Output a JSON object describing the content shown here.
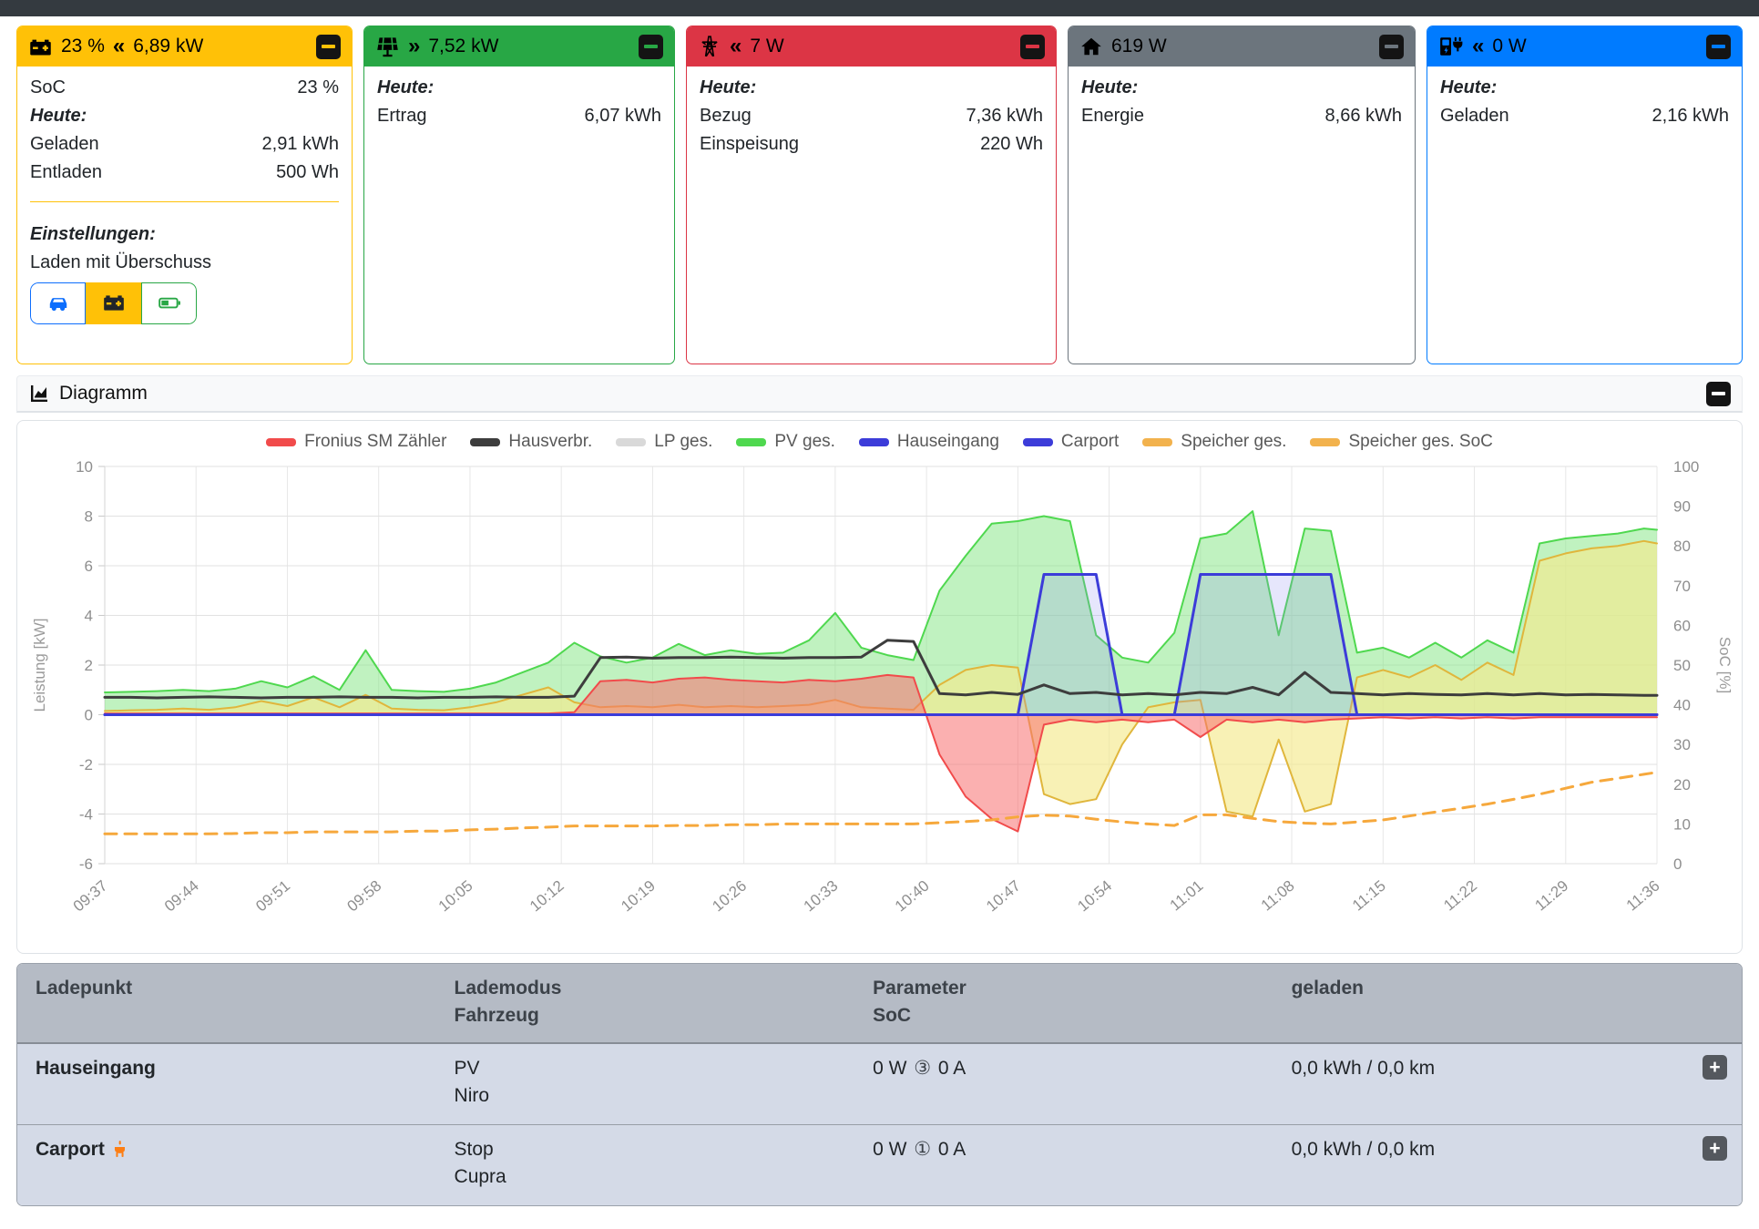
{
  "cards": [
    {
      "name": "storage",
      "accent": "#ffc107",
      "header": {
        "icon": "car-battery-icon",
        "soc": "23 %",
        "chevron": "«",
        "power": "6,89 kW"
      },
      "body": {
        "soc_label": "SoC",
        "soc_value": "23 %",
        "heute_label": "Heute:",
        "rows": [
          {
            "label": "Geladen",
            "value": "2,91 kWh"
          },
          {
            "label": "Entladen",
            "value": "500 Wh"
          }
        ],
        "einstellungen_label": "Einstellungen:",
        "mode_label": "Laden mit Überschuss"
      }
    },
    {
      "name": "pv",
      "accent": "#28a745",
      "header": {
        "icon": "solar-panel-icon",
        "chevron": "»",
        "power": "7,52 kW"
      },
      "body": {
        "heute_label": "Heute:",
        "rows": [
          {
            "label": "Ertrag",
            "value": "6,07 kWh"
          }
        ]
      }
    },
    {
      "name": "grid",
      "accent": "#dc3545",
      "header": {
        "icon": "transmission-tower-icon",
        "chevron": "«",
        "power": "7 W"
      },
      "body": {
        "heute_label": "Heute:",
        "rows": [
          {
            "label": "Bezug",
            "value": "7,36 kWh"
          },
          {
            "label": "Einspeisung",
            "value": "220 Wh"
          }
        ]
      }
    },
    {
      "name": "house",
      "accent": "#6c757d",
      "header": {
        "icon": "house-icon",
        "power": "619 W"
      },
      "body": {
        "heute_label": "Heute:",
        "rows": [
          {
            "label": "Energie",
            "value": "8,66 kWh"
          }
        ]
      }
    },
    {
      "name": "chargepoints",
      "accent": "#007bff",
      "header": {
        "icon": "charging-station-icon",
        "chevron": "«",
        "power": "0 W"
      },
      "body": {
        "heute_label": "Heute:",
        "rows": [
          {
            "label": "Geladen",
            "value": "2,16 kWh"
          }
        ]
      }
    }
  ],
  "diagram": {
    "title": "Diagramm"
  },
  "chart_data": {
    "type": "line",
    "y_left_label": "Leistung [kW]",
    "y_right_label": "SoC [%]",
    "y_left_range": [
      -6,
      10
    ],
    "y_right_range": [
      0,
      100
    ],
    "y_left_ticks": [
      10,
      8,
      6,
      4,
      2,
      0,
      -2,
      -4,
      -6
    ],
    "y_right_ticks": [
      100,
      90,
      80,
      70,
      60,
      50,
      40,
      30,
      20,
      10,
      0
    ],
    "x_tick_minutes": [
      0,
      7,
      14,
      21,
      28,
      35,
      42,
      49,
      56,
      63,
      70,
      77,
      84,
      91,
      98,
      105,
      112,
      119
    ],
    "x_tick_labels": [
      "09:37",
      "09:44",
      "09:51",
      "09:58",
      "10:05",
      "10:12",
      "10:19",
      "10:26",
      "10:33",
      "10:40",
      "10:47",
      "10:54",
      "11:01",
      "11:08",
      "11:15",
      "11:22",
      "11:29",
      "11:36"
    ],
    "x_minutes": [
      0,
      2,
      4,
      6,
      8,
      10,
      12,
      14,
      16,
      18,
      20,
      22,
      24,
      26,
      28,
      30,
      32,
      34,
      36,
      38,
      40,
      42,
      44,
      46,
      48,
      50,
      52,
      54,
      56,
      58,
      60,
      62,
      64,
      66,
      68,
      70,
      72,
      74,
      76,
      78,
      80,
      82,
      84,
      86,
      88,
      90,
      92,
      94,
      96,
      98,
      100,
      102,
      104,
      106,
      108,
      110,
      112,
      114,
      116,
      118,
      119
    ],
    "series": [
      {
        "name": "PV ges.",
        "axis": "power",
        "type": "area",
        "color": "#4fd84f",
        "fill": "rgba(130,230,130,0.50)",
        "width": 2,
        "values": [
          0.9,
          0.92,
          0.95,
          1.0,
          0.95,
          1.05,
          1.35,
          1.1,
          1.55,
          1.0,
          2.6,
          1.0,
          0.95,
          0.92,
          1.05,
          1.3,
          1.7,
          2.1,
          2.9,
          2.35,
          2.1,
          2.3,
          2.85,
          2.4,
          2.6,
          2.45,
          2.5,
          3.0,
          4.1,
          2.7,
          2.4,
          2.2,
          5.0,
          6.4,
          7.7,
          7.8,
          8.0,
          7.8,
          3.2,
          2.3,
          2.1,
          3.3,
          7.1,
          7.3,
          8.2,
          3.2,
          7.5,
          7.4,
          2.5,
          2.7,
          2.3,
          2.9,
          2.3,
          3.0,
          2.5,
          6.9,
          7.1,
          7.2,
          7.3,
          7.5,
          7.45
        ]
      },
      {
        "name": "Speicher ges.",
        "axis": "power",
        "type": "area",
        "color": "#e0b63c",
        "fill": "rgba(244,233,141,0.65)",
        "width": 2,
        "values": [
          0.15,
          0.18,
          0.2,
          0.25,
          0.2,
          0.3,
          0.55,
          0.35,
          0.7,
          0.3,
          0.8,
          0.25,
          0.2,
          0.18,
          0.3,
          0.5,
          0.8,
          1.1,
          0.5,
          0.3,
          0.35,
          0.3,
          0.4,
          0.3,
          0.35,
          0.3,
          0.35,
          0.4,
          0.6,
          0.3,
          0.25,
          0.2,
          1.2,
          1.8,
          2.0,
          1.9,
          -3.2,
          -3.6,
          -3.4,
          -1.2,
          0.3,
          0.5,
          0.6,
          -3.9,
          -4.1,
          -1.0,
          -3.9,
          -3.6,
          1.5,
          1.8,
          1.5,
          2.0,
          1.4,
          2.1,
          1.6,
          6.2,
          6.5,
          6.7,
          6.8,
          7.0,
          6.9
        ]
      },
      {
        "name": "Fronius SM Zähler",
        "axis": "power",
        "type": "area",
        "color": "#f14b4b",
        "fill": "rgba(247,112,112,0.55)",
        "width": 2,
        "values": [
          0.05,
          0.05,
          0.05,
          0.05,
          0.05,
          0.05,
          0.05,
          0.05,
          0.05,
          0.05,
          0.05,
          0.05,
          0.05,
          0.05,
          0.05,
          0.05,
          0.05,
          0.05,
          0.1,
          1.35,
          1.4,
          1.3,
          1.45,
          1.5,
          1.4,
          1.35,
          1.3,
          1.4,
          1.35,
          1.45,
          1.6,
          1.5,
          -1.6,
          -3.3,
          -4.2,
          -4.7,
          -0.4,
          -0.2,
          -0.3,
          -0.2,
          -0.3,
          -0.2,
          -0.9,
          -0.2,
          -0.3,
          -0.2,
          -0.3,
          -0.2,
          -0.15,
          -0.1,
          -0.15,
          -0.1,
          -0.15,
          -0.1,
          -0.15,
          -0.1,
          -0.1,
          -0.1,
          -0.1,
          -0.1,
          -0.1
        ]
      },
      {
        "name": "LP ges.",
        "axis": "power",
        "type": "line",
        "color": "#d9d9d9",
        "width": 2,
        "values": [
          0,
          0,
          0,
          0,
          0,
          0,
          0,
          0,
          0,
          0,
          0,
          0,
          0,
          0,
          0,
          0,
          0,
          0,
          0,
          0,
          0,
          0,
          0,
          0,
          0,
          0,
          0,
          0,
          0,
          0,
          0,
          0,
          0,
          0,
          0,
          0,
          5.65,
          5.65,
          5.65,
          0,
          0,
          0,
          5.65,
          5.65,
          5.65,
          5.65,
          5.65,
          5.65,
          0,
          0,
          0,
          0,
          0,
          0,
          0,
          0,
          0,
          0,
          0,
          0,
          0
        ]
      },
      {
        "name": "Hauseingang",
        "axis": "power",
        "type": "area",
        "color": "#3c3cd9",
        "fill": "rgba(140,140,240,0.22)",
        "width": 3,
        "values": [
          0,
          0,
          0,
          0,
          0,
          0,
          0,
          0,
          0,
          0,
          0,
          0,
          0,
          0,
          0,
          0,
          0,
          0,
          0,
          0,
          0,
          0,
          0,
          0,
          0,
          0,
          0,
          0,
          0,
          0,
          0,
          0,
          0,
          0,
          0,
          0,
          5.65,
          5.65,
          5.65,
          0,
          0,
          0,
          5.65,
          5.65,
          5.65,
          5.65,
          5.65,
          5.65,
          0,
          0,
          0,
          0,
          0,
          0,
          0,
          0,
          0,
          0,
          0,
          0,
          0
        ]
      },
      {
        "name": "Carport",
        "axis": "power",
        "type": "line",
        "color": "#3c3cd9",
        "width": 3,
        "values": [
          0,
          0,
          0,
          0,
          0,
          0,
          0,
          0,
          0,
          0,
          0,
          0,
          0,
          0,
          0,
          0,
          0,
          0,
          0,
          0,
          0,
          0,
          0,
          0,
          0,
          0,
          0,
          0,
          0,
          0,
          0,
          0,
          0,
          0,
          0,
          0,
          0,
          0,
          0,
          0,
          0,
          0,
          0,
          0,
          0,
          0,
          0,
          0,
          0,
          0,
          0,
          0,
          0,
          0,
          0,
          0,
          0,
          0,
          0,
          0,
          0
        ]
      },
      {
        "name": "Hausverbr.",
        "axis": "power",
        "type": "line",
        "color": "#3d3d3d",
        "width": 3,
        "values": [
          0.7,
          0.7,
          0.68,
          0.7,
          0.72,
          0.7,
          0.68,
          0.7,
          0.7,
          0.72,
          0.7,
          0.7,
          0.68,
          0.7,
          0.7,
          0.72,
          0.7,
          0.7,
          0.75,
          2.3,
          2.32,
          2.28,
          2.3,
          2.3,
          2.32,
          2.3,
          2.28,
          2.3,
          2.3,
          2.32,
          3.0,
          2.95,
          0.85,
          0.8,
          0.9,
          0.82,
          1.2,
          0.85,
          0.9,
          0.8,
          0.85,
          0.8,
          0.9,
          0.85,
          1.1,
          0.8,
          1.7,
          0.9,
          0.85,
          0.8,
          0.85,
          0.82,
          0.8,
          0.85,
          0.8,
          0.85,
          0.8,
          0.82,
          0.8,
          0.78,
          0.78
        ]
      },
      {
        "name": "Speicher ges. SoC",
        "axis": "soc",
        "type": "line",
        "color": "#f6a83c",
        "width": 3,
        "dash": "13 9",
        "values": [
          7.5,
          7.5,
          7.5,
          7.5,
          7.5,
          7.6,
          7.8,
          7.8,
          8.0,
          8.0,
          8.0,
          8.0,
          8.2,
          8.2,
          8.5,
          8.7,
          9.0,
          9.2,
          9.5,
          9.5,
          9.5,
          9.5,
          9.6,
          9.6,
          9.8,
          9.8,
          10.0,
          10.0,
          10.0,
          10.0,
          10.0,
          10.0,
          10.3,
          10.6,
          11.0,
          11.8,
          12.2,
          12.0,
          11.2,
          10.5,
          10.0,
          9.6,
          12.3,
          12.3,
          11.4,
          10.6,
          10.2,
          10.0,
          10.5,
          11.0,
          12.0,
          13.0,
          14.0,
          15.0,
          16.2,
          17.5,
          19.0,
          20.5,
          21.5,
          22.5,
          23.0
        ]
      }
    ],
    "legend": [
      {
        "label": "Fronius SM Zähler",
        "color": "#f14b4b"
      },
      {
        "label": "Hausverbr.",
        "color": "#3d3d3d"
      },
      {
        "label": "LP ges.",
        "color": "#d9d9d9"
      },
      {
        "label": "PV ges.",
        "color": "#4fd84f"
      },
      {
        "label": "Hauseingang",
        "color": "#3c3cd9"
      },
      {
        "label": "Carport",
        "color": "#3c3cd9"
      },
      {
        "label": "Speicher ges.",
        "color": "#f2b24d"
      },
      {
        "label": "Speicher ges. SoC",
        "color": "#f2b24d"
      }
    ]
  },
  "table": {
    "headers": [
      [
        "Ladepunkt",
        ""
      ],
      [
        "Lademodus",
        "Fahrzeug"
      ],
      [
        "Parameter",
        "SoC"
      ],
      [
        "geladen",
        ""
      ]
    ],
    "rows": [
      {
        "name": "Hauseingang",
        "mode": "PV",
        "vehicle": "Niro",
        "param_power": "0 W",
        "param_phases": "③",
        "param_current": "0 A",
        "charged": "0,0 kWh / 0,0 km"
      },
      {
        "name": "Carport",
        "mode": "Stop",
        "vehicle": "Cupra",
        "param_power": "0 W",
        "param_phases": "①",
        "param_current": "0 A",
        "charged": "0,0 kWh / 0,0 km"
      }
    ]
  }
}
